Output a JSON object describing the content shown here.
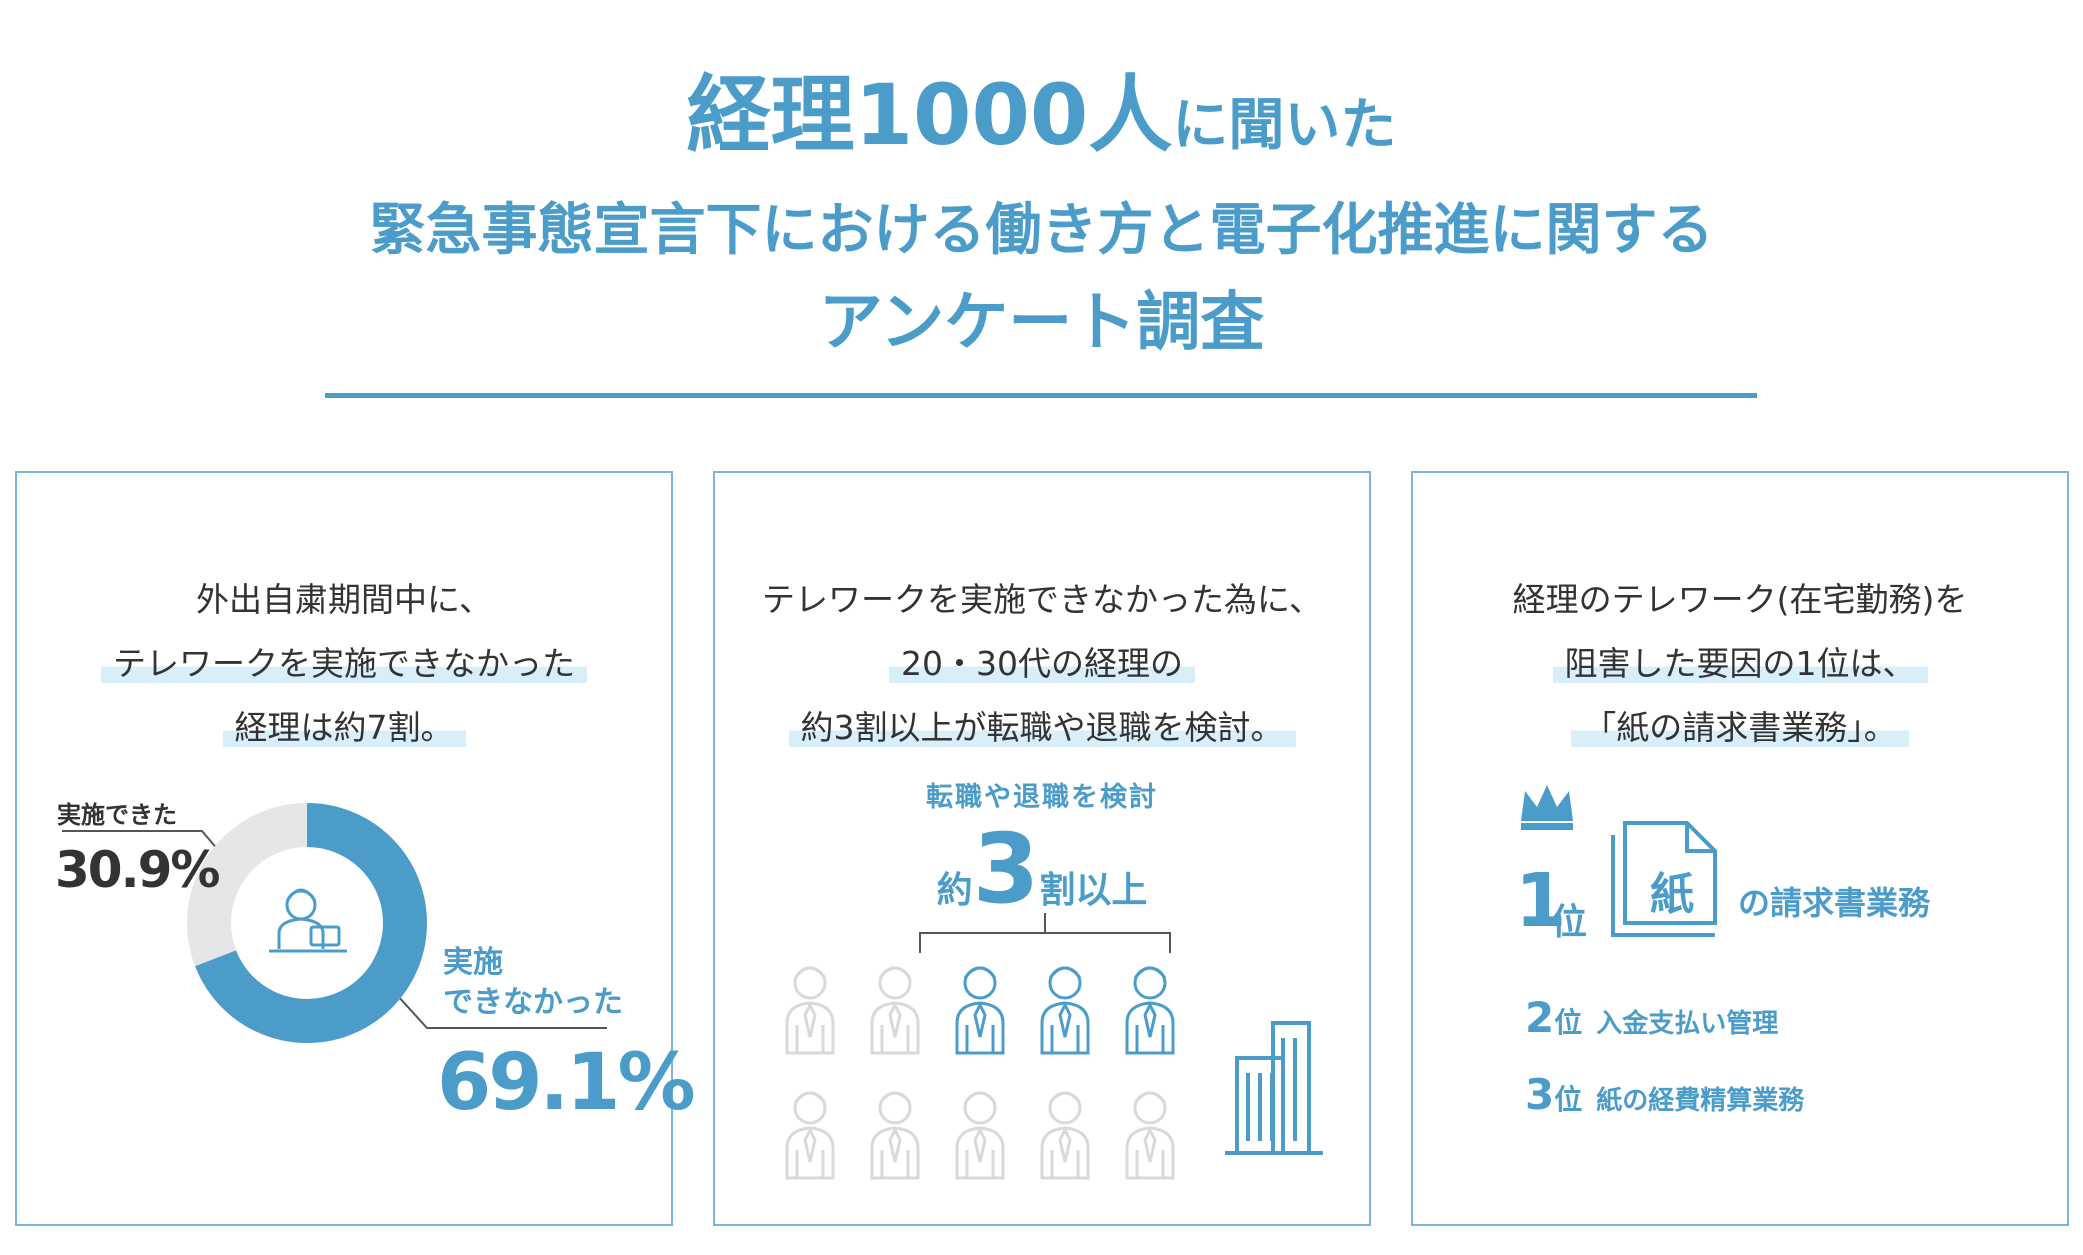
{
  "header": {
    "title_line1_main": "経理1000人",
    "title_line1_suffix": "に聞いた",
    "title_line2": "緊急事態宣言下における働き方と電子化推進に関する",
    "title_line3": "アンケート調査"
  },
  "panel1": {
    "headline": [
      "外出自粛期間中に、",
      "テレワークを実施できなかった",
      "経理は約7割。"
    ],
    "implemented_label": "実施できた",
    "implemented_pct": "30.9%",
    "not_implemented_label_1": "実施",
    "not_implemented_label_2": "できなかった",
    "not_implemented_pct": "69.1%",
    "implemented_value": 30.9,
    "not_implemented_value": 69.1,
    "colors": {
      "accent": "#4c9cca",
      "rest": "#e6e6e6"
    }
  },
  "panel2": {
    "headline": [
      "テレワークを実施できなかった為に、",
      "20・30代の経理の",
      "約3割以上が転職や退職を検討。"
    ],
    "sub_caption": "転職や退職を検討",
    "stat_prefix": "約",
    "stat_number": "3",
    "stat_suffix": "割以上",
    "highlighted_people": 3,
    "total_people": 10
  },
  "panel3": {
    "headline": [
      "経理のテレワーク(在宅勤務)を",
      "阻害した要因の1位は、",
      "「紙の請求書業務」。"
    ],
    "rank1_num": "1",
    "rank1_pos": "位",
    "rank1_icon_text": "紙",
    "rank1_label": "の請求書業務",
    "rank2_num": "2",
    "rank2_pos": "位",
    "rank2_label": "入金支払い管理",
    "rank3_num": "3",
    "rank3_pos": "位",
    "rank3_label": "紙の経費精算業務"
  }
}
